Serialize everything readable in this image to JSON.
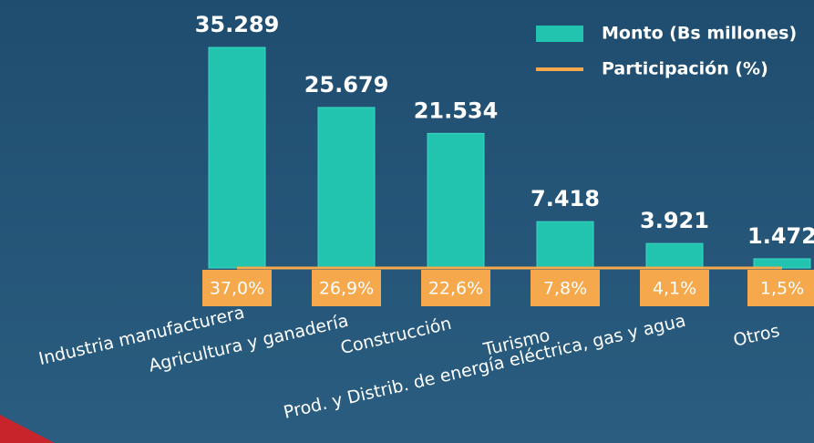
{
  "chart_data": {
    "type": "bar",
    "categories": [
      "Industria manufacturera",
      "Agricultura y ganadería",
      "Construcción",
      "Turismo",
      "Prod. y Distrib. de energía eléctrica, gas y agua",
      "Otros"
    ],
    "series": [
      {
        "name": "Monto (Bs millones)",
        "color": "#22c4b0",
        "values": [
          35289,
          25679,
          21534,
          7418,
          3921,
          1472
        ],
        "value_labels": [
          "35.289",
          "25.679",
          "21.534",
          "7.418",
          "3.921",
          "1.472"
        ]
      },
      {
        "name": "Participación (%)",
        "color": "#f5a94c",
        "values": [
          37.0,
          26.9,
          22.6,
          7.8,
          4.1,
          1.5
        ],
        "value_labels": [
          "37,0%",
          "26,9%",
          "22,6%",
          "7,8%",
          "4,1%",
          "1,5%"
        ]
      }
    ],
    "ylim": [
      0,
      42000
    ]
  }
}
